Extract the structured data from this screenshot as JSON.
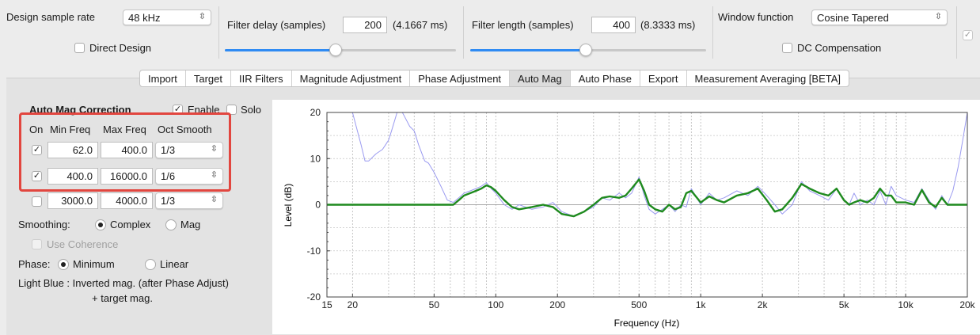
{
  "toolbar": {
    "sample_rate_label": "Design sample rate",
    "sample_rate_value": "48 kHz",
    "direct_design_label": "Direct Design",
    "filter_delay_label": "Filter delay (samples)",
    "filter_delay_value": "200",
    "filter_delay_ms": "(4.1667 ms)",
    "filter_delay_slider": 0.48,
    "filter_length_label": "Filter length (samples)",
    "filter_length_value": "400",
    "filter_length_ms": "(8.3333 ms)",
    "filter_length_slider": 0.49,
    "window_label": "Window function",
    "window_value": "Cosine Tapered",
    "dc_comp_label": "DC Compensation"
  },
  "tabs": [
    {
      "label": "Import"
    },
    {
      "label": "Target"
    },
    {
      "label": "IIR Filters"
    },
    {
      "label": "Magnitude Adjustment"
    },
    {
      "label": "Phase Adjustment"
    },
    {
      "label": "Auto Mag",
      "selected": true
    },
    {
      "label": "Auto Phase"
    },
    {
      "label": "Export"
    },
    {
      "label": "Measurement Averaging [BETA]"
    }
  ],
  "auto_mag": {
    "title": "Auto Mag Correction",
    "enable_label": "Enable",
    "enable_checked": true,
    "solo_label": "Solo",
    "solo_checked": false,
    "headers": {
      "on": "On",
      "min": "Min Freq",
      "max": "Max Freq",
      "oct": "Oct Smooth"
    },
    "rows": [
      {
        "on": true,
        "min": "62.0",
        "max": "400.0",
        "oct": "1/3"
      },
      {
        "on": true,
        "min": "400.0",
        "max": "16000.0",
        "oct": "1/6"
      },
      {
        "on": false,
        "min": "3000.0",
        "max": "4000.0",
        "oct": "1/3"
      }
    ],
    "smoothing_label": "Smoothing:",
    "smoothing_opt1": "Complex",
    "smoothing_opt2": "Mag",
    "use_coherence_label": "Use Coherence",
    "phase_label": "Phase:",
    "phase_opt1": "Minimum",
    "phase_opt2": "Linear",
    "note_line1": "Light Blue : Inverted mag. (after Phase Adjust)",
    "note_line2": "+ target mag."
  },
  "colors": {
    "accent": "#2f8bf3",
    "highlight_box": "#e2463f",
    "green_curve": "#1e8a1e",
    "blue_curve": "#9a9af0"
  },
  "chart_data": {
    "type": "line",
    "ylabel": "Level (dB)",
    "xlabel": "Frequency (Hz)",
    "x_scale": "log",
    "xlim": [
      15,
      20000
    ],
    "ylim": [
      -20,
      20
    ],
    "x_ticks": [
      15,
      20,
      50,
      100,
      200,
      500,
      1000,
      2000,
      5000,
      10000,
      20000
    ],
    "x_tick_labels": [
      "15",
      "20",
      "50",
      "100",
      "200",
      "500",
      "1k",
      "2k",
      "5k",
      "10k",
      "20k"
    ],
    "y_ticks": [
      -20,
      -10,
      0,
      10,
      20
    ],
    "y_tick_labels": [
      "-20",
      "-10",
      "0",
      "10",
      "20"
    ],
    "grid": true,
    "series": [
      {
        "color": "#9a9af0",
        "x": [
          15,
          20,
          22,
          23,
          24,
          26,
          28,
          29,
          30,
          31,
          33,
          35,
          36,
          38,
          40,
          42,
          45,
          47,
          50,
          54,
          58,
          62,
          66,
          70,
          75,
          80,
          85,
          90,
          95,
          100,
          110,
          120,
          130,
          150,
          170,
          190,
          210,
          240,
          270,
          300,
          330,
          360,
          400,
          430,
          460,
          500,
          530,
          560,
          600,
          650,
          700,
          750,
          800,
          850,
          900,
          1000,
          1100,
          1200,
          1300,
          1500,
          1700,
          1900,
          2100,
          2300,
          2500,
          2800,
          3100,
          3400,
          3800,
          4200,
          4600,
          5000,
          5300,
          5600,
          6000,
          6500,
          7000,
          7500,
          8000,
          8500,
          9000,
          10000,
          11000,
          12000,
          13000,
          14000,
          15000,
          16000,
          17000,
          18000,
          19000,
          20000
        ],
        "y": [
          20,
          20,
          13,
          9.5,
          9.5,
          11,
          12,
          13,
          14,
          16,
          20,
          20,
          19,
          17,
          16,
          13,
          9.5,
          9,
          7,
          4,
          1,
          0.5,
          1.5,
          2.5,
          3,
          3.5,
          4,
          4.8,
          3.5,
          2.5,
          0,
          -1,
          0,
          -1,
          -0.5,
          0.5,
          -1.5,
          -2.5,
          -1.5,
          -0.5,
          1.5,
          1,
          2.5,
          1.5,
          2.5,
          6,
          2,
          -1,
          -2,
          -1,
          0,
          -1.5,
          0,
          -0.5,
          3.5,
          0,
          2.5,
          1,
          1.5,
          3,
          2,
          4,
          2,
          0,
          -2,
          0,
          5,
          3,
          2,
          1,
          3.5,
          1,
          0,
          2.5,
          0,
          1,
          0,
          3,
          0,
          4,
          2,
          1,
          0.5,
          3.5,
          1,
          -1,
          2,
          0,
          3,
          8,
          14,
          20
        ]
      },
      {
        "color": "#1e8a1e",
        "x": [
          15,
          50,
          62,
          66,
          70,
          75,
          80,
          85,
          90,
          95,
          100,
          110,
          120,
          130,
          150,
          170,
          190,
          210,
          240,
          270,
          300,
          330,
          360,
          400,
          430,
          460,
          500,
          530,
          560,
          600,
          650,
          700,
          750,
          800,
          850,
          900,
          1000,
          1100,
          1200,
          1300,
          1500,
          1700,
          1900,
          2100,
          2300,
          2500,
          2800,
          3100,
          3400,
          3800,
          4200,
          4600,
          5000,
          5300,
          5600,
          6000,
          6500,
          7000,
          7500,
          8000,
          8500,
          9000,
          10000,
          11000,
          12000,
          13000,
          14000,
          15000,
          16000,
          20000
        ],
        "y": [
          0,
          0,
          0,
          1,
          2,
          2.5,
          3,
          3.5,
          4.2,
          3.8,
          3,
          1,
          -0.5,
          -1,
          -0.5,
          0,
          -0.5,
          -2,
          -2.5,
          -1.5,
          0,
          1.5,
          1.8,
          1.5,
          2,
          3.5,
          5.5,
          3,
          0,
          -1,
          -1.5,
          0,
          -1,
          -0.5,
          2.5,
          3,
          0.5,
          1.8,
          1,
          0.5,
          2,
          2.5,
          3.5,
          1,
          -1.5,
          -1,
          1.5,
          4.5,
          3.5,
          2.5,
          2,
          3.5,
          1,
          0,
          0.5,
          1,
          0.5,
          1.5,
          3.5,
          2,
          2,
          0.5,
          0.5,
          0,
          3.2,
          0.5,
          -0.5,
          1.5,
          0,
          0
        ]
      }
    ]
  }
}
